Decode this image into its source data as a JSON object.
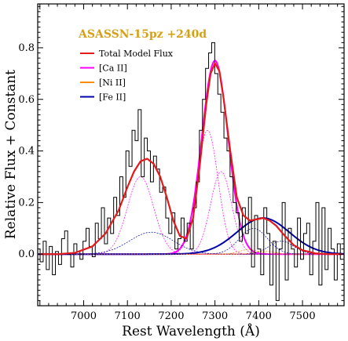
{
  "chart_data": {
    "type": "line",
    "xlabel": "Rest Wavelength (Å)",
    "ylabel": "Relative Flux + Constant",
    "xlim": [
      6895,
      7595
    ],
    "ylim": [
      -0.2,
      0.97
    ],
    "xticks": [
      7000,
      7100,
      7200,
      7300,
      7400,
      7500
    ],
    "xtick_labels": [
      "7000",
      "7100",
      "7200",
      "7300",
      "7400",
      "7500"
    ],
    "yticks": [
      0.0,
      0.2,
      0.4,
      0.6,
      0.8
    ],
    "ytick_labels": [
      "0.0",
      "0.2",
      "0.4",
      "0.6",
      "0.8"
    ],
    "annotation": {
      "text": "ASASSN-15pz +240d",
      "color": "#d4a017"
    },
    "legend": {
      "position": "top-left",
      "entries": [
        {
          "label": "Total Model Flux",
          "color": "#e31a1c"
        },
        {
          "label": "[Ca II]",
          "color": "#ff00ff"
        },
        {
          "label": "[Ni II]",
          "color": "#ff8c00"
        },
        {
          "label": "[Fe II]",
          "color": "#0000aa"
        }
      ]
    },
    "colors": {
      "observed": "#000000",
      "total": "#e31a1c",
      "ca": "#ff00ff",
      "ni": "#ff8c00",
      "fe": "#0000aa",
      "baseline": "#e31a1c"
    },
    "observed": {
      "name": "",
      "x": [
        6897,
        6904,
        6911,
        6918,
        6925,
        6932,
        6939,
        6946,
        6953,
        6960,
        6967,
        6974,
        6981,
        6988,
        6995,
        7002,
        7009,
        7016,
        7023,
        7030,
        7037,
        7044,
        7051,
        7058,
        7065,
        7072,
        7079,
        7086,
        7093,
        7100,
        7107,
        7114,
        7121,
        7128,
        7135,
        7142,
        7149,
        7156,
        7163,
        7170,
        7177,
        7184,
        7191,
        7198,
        7205,
        7212,
        7219,
        7226,
        7233,
        7240,
        7247,
        7254,
        7261,
        7268,
        7275,
        7282,
        7289,
        7296,
        7303,
        7310,
        7317,
        7324,
        7331,
        7338,
        7345,
        7352,
        7359,
        7366,
        7373,
        7380,
        7387,
        7394,
        7401,
        7408,
        7415,
        7422,
        7429,
        7436,
        7443,
        7450,
        7457,
        7464,
        7471,
        7478,
        7485,
        7492,
        7499,
        7506,
        7513,
        7520,
        7527,
        7534,
        7541,
        7548,
        7555,
        7562,
        7569,
        7576,
        7583,
        7590
      ],
      "y": [
        0.02,
        -0.03,
        0.05,
        -0.06,
        0.03,
        -0.08,
        0.01,
        -0.04,
        0.06,
        0.09,
        0.0,
        -0.05,
        0.04,
        0.01,
        -0.02,
        0.05,
        0.1,
        0.03,
        -0.01,
        0.12,
        0.06,
        0.18,
        0.04,
        0.14,
        0.08,
        0.22,
        0.15,
        0.3,
        0.22,
        0.4,
        0.34,
        0.48,
        0.44,
        0.56,
        0.3,
        0.45,
        0.4,
        0.28,
        0.38,
        0.33,
        0.24,
        0.26,
        0.14,
        0.08,
        0.16,
        0.02,
        0.06,
        0.14,
        0.05,
        0.12,
        0.02,
        0.18,
        0.28,
        0.48,
        0.6,
        0.72,
        0.78,
        0.82,
        0.7,
        0.62,
        0.55,
        0.45,
        0.4,
        0.3,
        0.2,
        0.16,
        0.05,
        0.18,
        0.08,
        0.22,
        -0.05,
        0.15,
        0.02,
        -0.08,
        0.18,
        0.08,
        -0.12,
        0.05,
        -0.18,
        0.02,
        0.2,
        -0.1,
        0.1,
        0.02,
        -0.05,
        0.14,
        -0.02,
        0.08,
        0.12,
        -0.08,
        0.05,
        0.2,
        -0.12,
        0.18,
        -0.06,
        0.1,
        0.02,
        -0.1,
        0.04,
        -0.02
      ]
    },
    "total_model": {
      "name": "Total Model Flux",
      "x": [
        6900,
        6940,
        6980,
        7020,
        7050,
        7080,
        7100,
        7115,
        7130,
        7145,
        7160,
        7175,
        7190,
        7205,
        7220,
        7235,
        7250,
        7265,
        7280,
        7290,
        7300,
        7310,
        7320,
        7335,
        7350,
        7365,
        7380,
        7395,
        7410,
        7425,
        7440,
        7460,
        7480,
        7500,
        7530,
        7560,
        7590
      ],
      "y": [
        0.0,
        0.0,
        0.005,
        0.03,
        0.08,
        0.17,
        0.26,
        0.32,
        0.36,
        0.37,
        0.35,
        0.3,
        0.22,
        0.13,
        0.07,
        0.06,
        0.14,
        0.34,
        0.58,
        0.7,
        0.74,
        0.71,
        0.6,
        0.4,
        0.22,
        0.15,
        0.13,
        0.135,
        0.14,
        0.13,
        0.11,
        0.07,
        0.035,
        0.015,
        0.003,
        0.0,
        0.0
      ]
    },
    "components": [
      {
        "name": "[Ca II]",
        "group": "ca",
        "style": "thin",
        "center": 7130,
        "sigma": 30,
        "amp": 0.3
      },
      {
        "name": "[Ca II]",
        "group": "ca",
        "style": "thin",
        "center": 7283,
        "sigma": 24,
        "amp": 0.48
      },
      {
        "name": "[Ca II]",
        "group": "ca",
        "style": "thin",
        "center": 7314,
        "sigma": 24,
        "amp": 0.32
      },
      {
        "name": "[Ca II]",
        "group": "ca",
        "style": "thick",
        "center": 7300,
        "sigma": 30,
        "amp": 0.75
      },
      {
        "name": "[Fe II]",
        "group": "fe",
        "style": "thin",
        "center": 7155,
        "sigma": 50,
        "amp": 0.085
      },
      {
        "name": "[Fe II]",
        "group": "fe",
        "style": "thick",
        "center": 7410,
        "sigma": 60,
        "amp": 0.14
      },
      {
        "name": "[Fe II]",
        "group": "fe",
        "style": "thin",
        "center": 7388,
        "sigma": 32,
        "amp": 0.1
      },
      {
        "name": "[Fe II]",
        "group": "fe",
        "style": "thin",
        "center": 7452,
        "sigma": 28,
        "amp": 0.05
      },
      {
        "name": "[Ni II]",
        "group": "ni",
        "style": "thin",
        "center": 7378,
        "sigma": 22,
        "amp": 0.018
      },
      {
        "name": "[Ni II]",
        "group": "ni",
        "style": "thin",
        "center": 7412,
        "sigma": 22,
        "amp": 0.012
      }
    ]
  }
}
